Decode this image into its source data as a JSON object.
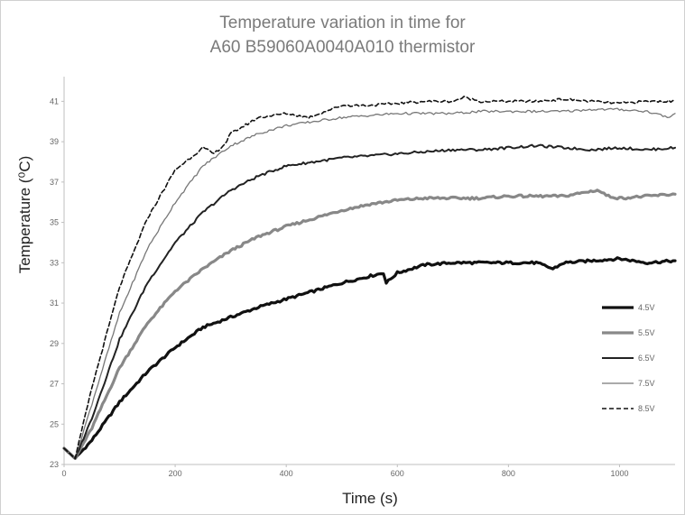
{
  "chart_data": {
    "type": "line",
    "title_line1": "Temperature variation in time for",
    "title_line2": "A60 B59060A0040A010 thermistor",
    "xlabel": "Time (s)",
    "ylabel": "Temperature (⁰C)",
    "xlim": [
      0,
      1100
    ],
    "ylim": [
      23,
      42
    ],
    "x_ticks": [
      0,
      200,
      400,
      600,
      800,
      1000
    ],
    "y_ticks": [
      23,
      25,
      27,
      29,
      31,
      33,
      35,
      37,
      39,
      41
    ],
    "grid": false,
    "legend_position": "right",
    "series": [
      {
        "name": "4.5V",
        "color": "#111111",
        "width": 3.2,
        "dash": "",
        "x": [
          0,
          20,
          50,
          100,
          150,
          200,
          250,
          300,
          350,
          400,
          450,
          500,
          560,
          575,
          580,
          600,
          650,
          700,
          750,
          800,
          850,
          880,
          900,
          950,
          1000,
          1050,
          1100
        ],
        "y": [
          23.8,
          23.3,
          24.2,
          26.1,
          27.6,
          28.8,
          29.8,
          30.3,
          30.8,
          31.2,
          31.6,
          32.0,
          32.4,
          32.5,
          32.0,
          32.5,
          32.9,
          33.0,
          33.0,
          33.0,
          33.0,
          32.7,
          33.0,
          33.1,
          33.2,
          33.0,
          33.1
        ]
      },
      {
        "name": "5.5V",
        "color": "#888888",
        "width": 3.2,
        "dash": "",
        "x": [
          0,
          20,
          50,
          100,
          150,
          200,
          250,
          300,
          350,
          400,
          450,
          500,
          550,
          600,
          650,
          700,
          750,
          800,
          850,
          900,
          960,
          980,
          1000,
          1050,
          1100
        ],
        "y": [
          23.8,
          23.3,
          24.8,
          27.8,
          30.0,
          31.6,
          32.7,
          33.6,
          34.3,
          34.8,
          35.2,
          35.6,
          35.9,
          36.1,
          36.2,
          36.2,
          36.2,
          36.3,
          36.3,
          36.3,
          36.6,
          36.3,
          36.2,
          36.3,
          36.4
        ]
      },
      {
        "name": "6.5V",
        "color": "#222222",
        "width": 2.0,
        "dash": "",
        "x": [
          0,
          20,
          50,
          100,
          150,
          200,
          250,
          300,
          350,
          400,
          450,
          500,
          550,
          600,
          650,
          700,
          750,
          800,
          850,
          900,
          950,
          1000,
          1050,
          1100
        ],
        "y": [
          23.8,
          23.3,
          25.3,
          29.2,
          32.0,
          34.0,
          35.5,
          36.6,
          37.3,
          37.8,
          38.0,
          38.2,
          38.3,
          38.4,
          38.5,
          38.6,
          38.6,
          38.7,
          38.8,
          38.7,
          38.6,
          38.7,
          38.6,
          38.7
        ]
      },
      {
        "name": "7.5V",
        "color": "#777777",
        "width": 1.3,
        "dash": "",
        "x": [
          0,
          20,
          50,
          100,
          150,
          200,
          250,
          300,
          350,
          400,
          450,
          500,
          550,
          600,
          650,
          700,
          750,
          800,
          850,
          900,
          950,
          1000,
          1050,
          1090,
          1100
        ],
        "y": [
          23.8,
          23.3,
          26.0,
          30.5,
          33.7,
          36.0,
          37.8,
          38.8,
          39.4,
          39.8,
          40.0,
          40.2,
          40.3,
          40.4,
          40.4,
          40.4,
          40.5,
          40.5,
          40.5,
          40.5,
          40.6,
          40.6,
          40.5,
          40.2,
          40.4
        ]
      },
      {
        "name": "8.5V",
        "color": "#111111",
        "width": 1.6,
        "dash": "5,3",
        "x": [
          0,
          20,
          50,
          100,
          150,
          200,
          250,
          270,
          290,
          300,
          350,
          400,
          440,
          480,
          500,
          550,
          600,
          650,
          700,
          720,
          750,
          800,
          850,
          900,
          950,
          1000,
          1050,
          1100
        ],
        "y": [
          23.8,
          23.3,
          26.8,
          31.8,
          35.2,
          37.6,
          38.7,
          38.4,
          38.9,
          39.4,
          40.2,
          40.4,
          40.2,
          40.6,
          40.8,
          40.8,
          40.9,
          41.0,
          41.0,
          41.2,
          41.0,
          41.0,
          41.0,
          41.1,
          41.0,
          40.9,
          41.0,
          41.0
        ]
      }
    ]
  }
}
